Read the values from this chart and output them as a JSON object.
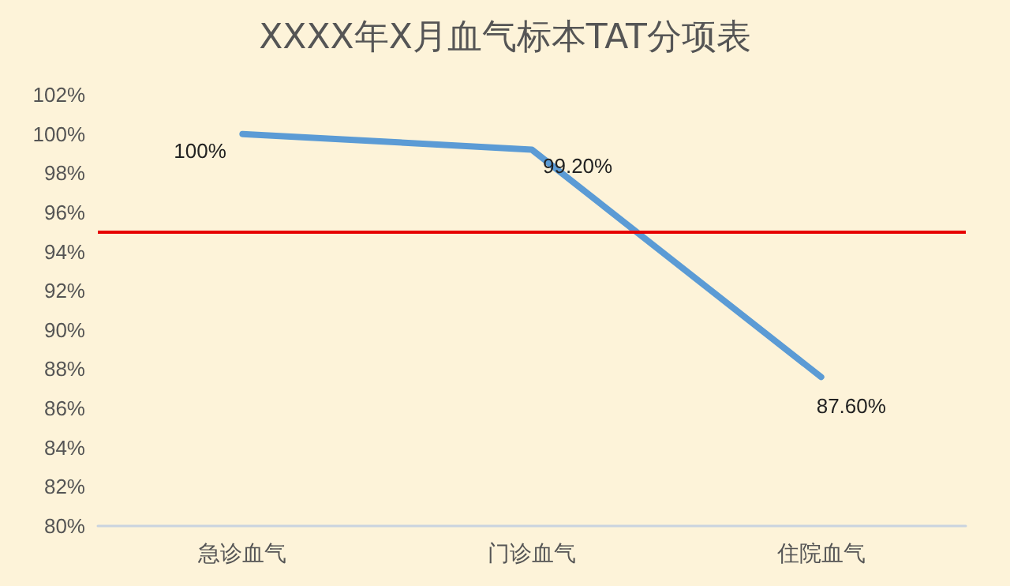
{
  "chart_data": {
    "type": "line",
    "title": "XXXX年X月血气标本TAT分项表",
    "categories": [
      "急诊血气",
      "门诊血气",
      "住院血气"
    ],
    "series": [
      {
        "color": "#5b9bd5",
        "values": [
          100,
          99.2,
          87.6
        ],
        "value_labels": [
          "100%",
          "99.20%",
          "87.60%"
        ]
      }
    ],
    "ylim": [
      80,
      102
    ],
    "yticks": [
      {
        "value": 80,
        "label": "80%"
      },
      {
        "value": 82,
        "label": "82%"
      },
      {
        "value": 84,
        "label": "84%"
      },
      {
        "value": 86,
        "label": "86%"
      },
      {
        "value": 88,
        "label": "88%"
      },
      {
        "value": 90,
        "label": "90%"
      },
      {
        "value": 92,
        "label": "92%"
      },
      {
        "value": 94,
        "label": "94%"
      },
      {
        "value": 96,
        "label": "96%"
      },
      {
        "value": 98,
        "label": "98%"
      },
      {
        "value": 100,
        "label": "100%"
      },
      {
        "value": 102,
        "label": "102%"
      }
    ],
    "ref_lines": [
      {
        "axis": "y",
        "value": 95,
        "color": "#e60000"
      }
    ],
    "grid": false,
    "marker": "none",
    "line_style": "solid"
  }
}
